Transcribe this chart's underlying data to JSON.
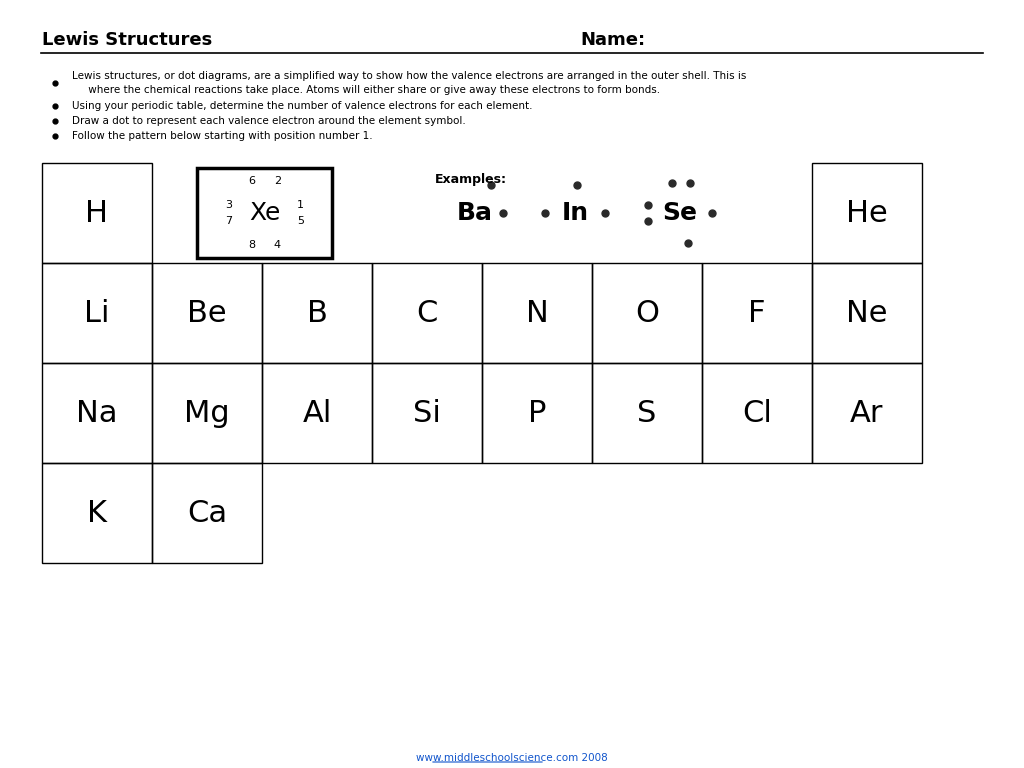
{
  "title_left": "Lewis Structures",
  "title_right": "Name:",
  "bg_color": "#ffffff",
  "text_color": "#000000",
  "bullets": [
    "Lewis structures, or dot diagrams, are a simplified way to show how the valence electrons are arranged in the outer shell. This is\n     where the chemical reactions take place. Atoms will either share or give away these electrons to form bonds.",
    "Using your periodic table, determine the number of valence electrons for each element.",
    "Draw a dot to represent each valence electron around the element symbol.",
    "Follow the pattern below starting with position number 1."
  ],
  "grid_elements": [
    [
      "H",
      "",
      "",
      "",
      "",
      "",
      "",
      "He"
    ],
    [
      "Li",
      "Be",
      "B",
      "C",
      "N",
      "O",
      "F",
      "Ne"
    ],
    [
      "Na",
      "Mg",
      "Al",
      "Si",
      "P",
      "S",
      "Cl",
      "Ar"
    ],
    [
      "K",
      "Ca",
      "",
      "",
      "",
      "",
      "",
      ""
    ]
  ],
  "footer_text": "www.middleschoolscience.com 2008",
  "footer_url": "www.middleschoolscience.com",
  "right_bar_color": "#4472c4"
}
